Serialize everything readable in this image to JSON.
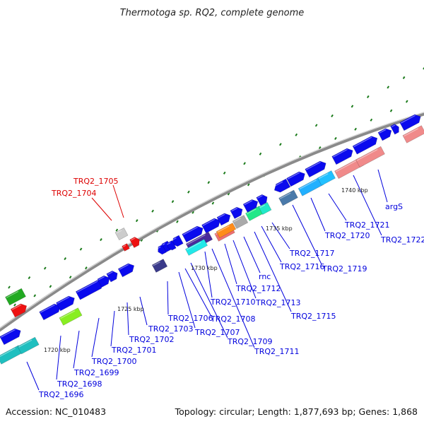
{
  "title": "Thermotoga sp. RQ2, complete genome",
  "footer": {
    "accession": "Accession: NC_010483",
    "summary": "Topology: circular; Length: 1,877,693 bp; Genes: 1,868"
  },
  "colors": {
    "blue_gene": "#0a0aee",
    "red_gene": "#ee1111",
    "label_blue": "#0000dd",
    "label_red": "#dd0000",
    "backbone": "#8a8a8a",
    "tick_green": "#1a7a1a"
  },
  "scale_labels": [
    "1720 kbp",
    "1725 kbp",
    "1730 kbp",
    "1735 kbp",
    "1740 kbp"
  ],
  "gene_labels": [
    {
      "text": "TRQ2_1705",
      "color": "red"
    },
    {
      "text": "TRQ2_1704",
      "color": "red"
    },
    {
      "text": "TRQ2_1696",
      "color": "blue"
    },
    {
      "text": "TRQ2_1698",
      "color": "blue"
    },
    {
      "text": "TRQ2_1699",
      "color": "blue"
    },
    {
      "text": "TRQ2_1700",
      "color": "blue"
    },
    {
      "text": "TRQ2_1701",
      "color": "blue"
    },
    {
      "text": "TRQ2_1702",
      "color": "blue"
    },
    {
      "text": "TRQ2_1703",
      "color": "blue"
    },
    {
      "text": "TRQ2_1706",
      "color": "blue"
    },
    {
      "text": "TRQ2_1707",
      "color": "blue"
    },
    {
      "text": "TRQ2_1708",
      "color": "blue"
    },
    {
      "text": "TRQ2_1709",
      "color": "blue"
    },
    {
      "text": "TRQ2_1710",
      "color": "blue"
    },
    {
      "text": "TRQ2_1711",
      "color": "blue"
    },
    {
      "text": "TRQ2_1712",
      "color": "blue"
    },
    {
      "text": "TRQ2_1713",
      "color": "blue"
    },
    {
      "text": "rnc",
      "color": "blue"
    },
    {
      "text": "TRQ2_1715",
      "color": "blue"
    },
    {
      "text": "TRQ2_1716",
      "color": "blue"
    },
    {
      "text": "TRQ2_1717",
      "color": "blue"
    },
    {
      "text": "TRQ2_1719",
      "color": "blue"
    },
    {
      "text": "TRQ2_1720",
      "color": "blue"
    },
    {
      "text": "TRQ2_1721",
      "color": "blue"
    },
    {
      "text": "TRQ2_1722",
      "color": "blue"
    },
    {
      "text": "argS",
      "color": "blue"
    }
  ]
}
